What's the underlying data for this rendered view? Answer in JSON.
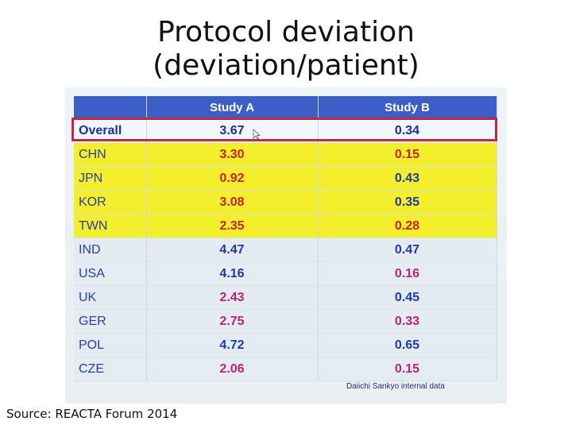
{
  "title": {
    "line1": "Protocol deviation",
    "line2": "(deviation/patient)"
  },
  "table": {
    "headers": [
      "",
      "Study A",
      "Study B"
    ],
    "rows": [
      {
        "country": "Overall",
        "study_a": "3.67",
        "study_b": "0.34"
      },
      {
        "country": "CHN",
        "study_a": "3.30",
        "study_b": "0.15"
      },
      {
        "country": "JPN",
        "study_a": "0.92",
        "study_b": "0.43"
      },
      {
        "country": "KOR",
        "study_a": "3.08",
        "study_b": "0.35"
      },
      {
        "country": "TWN",
        "study_a": "2.35",
        "study_b": "0.28"
      },
      {
        "country": "IND",
        "study_a": "4.47",
        "study_b": "0.47"
      },
      {
        "country": "USA",
        "study_a": "4.16",
        "study_b": "0.16"
      },
      {
        "country": "UK",
        "study_a": "2.43",
        "study_b": "0.45"
      },
      {
        "country": "GER",
        "study_a": "2.75",
        "study_b": "0.33"
      },
      {
        "country": "POL",
        "study_a": "4.72",
        "study_b": "0.65"
      },
      {
        "country": "CZE",
        "study_a": "2.06",
        "study_b": "0.15"
      }
    ]
  },
  "footnote": "Daiichi Sankyo internal data",
  "source": "Source: REACTA Forum 2014",
  "colors": {
    "header_bg": "#3b5fc7",
    "highlight_yellow": "#f3ef2c",
    "outline_red": "#c0284a",
    "value_red": "#c8222e",
    "value_magenta": "#b8237a",
    "value_blue": "#1f37a8"
  },
  "icons": {
    "cursor": "cursor-icon"
  }
}
